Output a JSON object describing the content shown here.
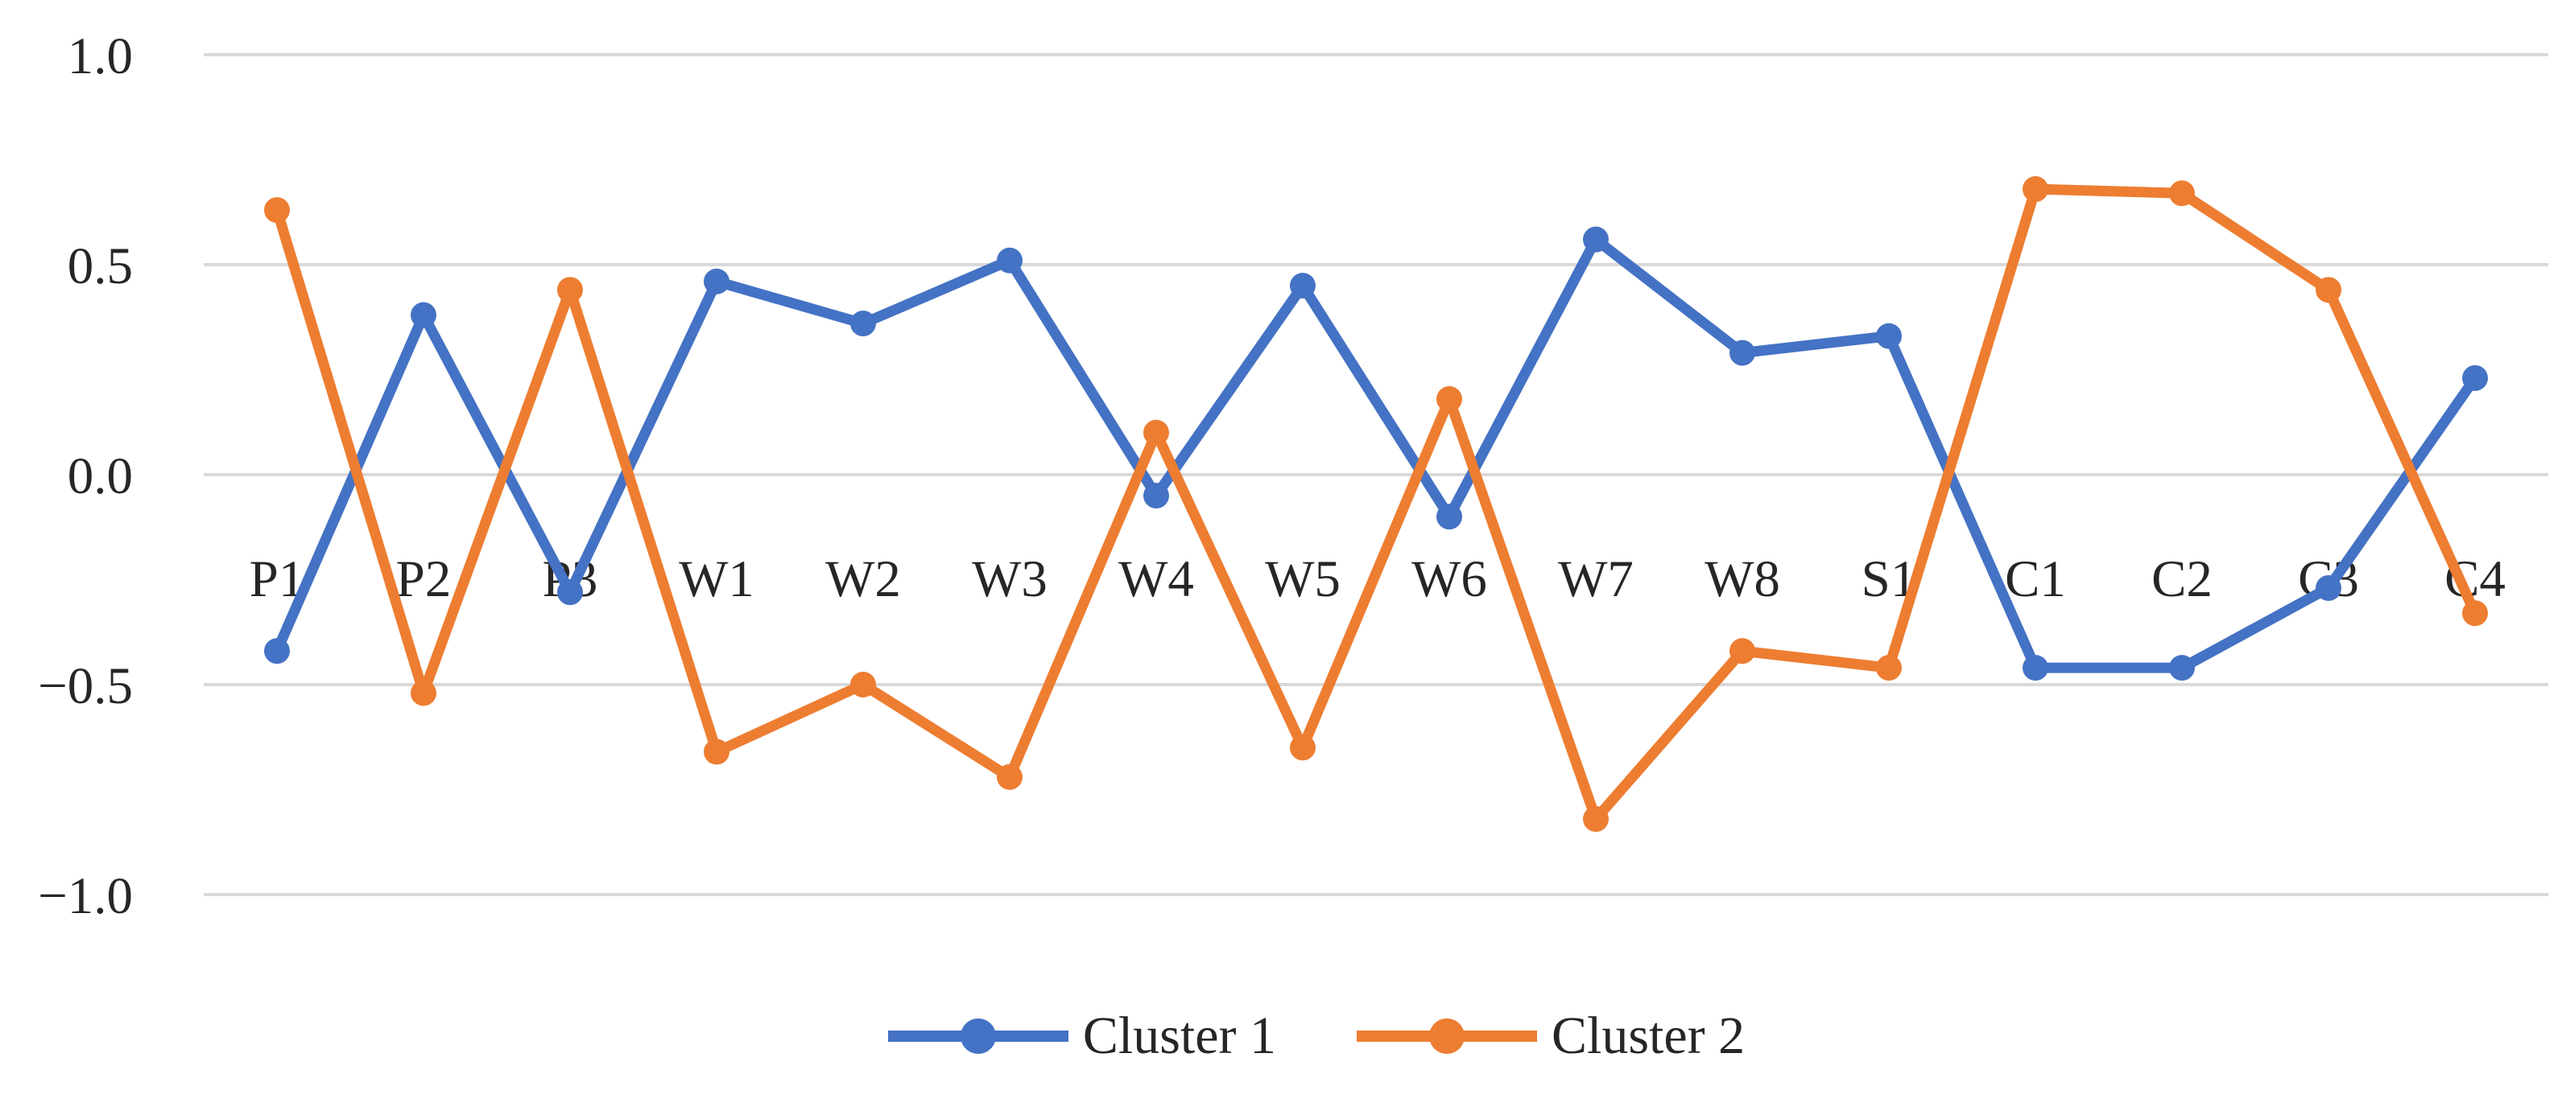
{
  "chart_data": {
    "type": "line",
    "title": "",
    "categories": [
      "P1",
      "P2",
      "P3",
      "W1",
      "W2",
      "W3",
      "W4",
      "W5",
      "W6",
      "W7",
      "W8",
      "S1",
      "C1",
      "C2",
      "C3",
      "C4"
    ],
    "series": [
      {
        "name": "Cluster 1",
        "color": "#4472C4",
        "values": [
          -0.42,
          0.38,
          -0.28,
          0.46,
          0.36,
          0.51,
          -0.05,
          0.45,
          -0.1,
          0.56,
          0.29,
          0.33,
          -0.46,
          -0.46,
          -0.27,
          0.23
        ]
      },
      {
        "name": "Cluster 2",
        "color": "#ED7D31",
        "values": [
          0.63,
          -0.52,
          0.44,
          -0.66,
          -0.5,
          -0.72,
          0.1,
          -0.65,
          0.18,
          -0.82,
          -0.42,
          -0.46,
          0.68,
          0.67,
          0.44,
          -0.33
        ]
      }
    ],
    "y_axis": {
      "tick_labels": [
        "1.0",
        "0.5",
        "0.0",
        "−0.5",
        "−1.0"
      ],
      "tick_values": [
        1.0,
        0.5,
        0.0,
        -0.5,
        -1.0
      ],
      "ylim": [
        -1.0,
        1.0
      ],
      "grid": true,
      "gridline_color": "#d9d9d9"
    },
    "x_axis": {
      "label_position": "below-zero-line"
    },
    "legend": {
      "position": "bottom-center",
      "entries": [
        "Cluster 1",
        "Cluster 2"
      ]
    },
    "marker": "circle",
    "background_color": "#ffffff"
  }
}
